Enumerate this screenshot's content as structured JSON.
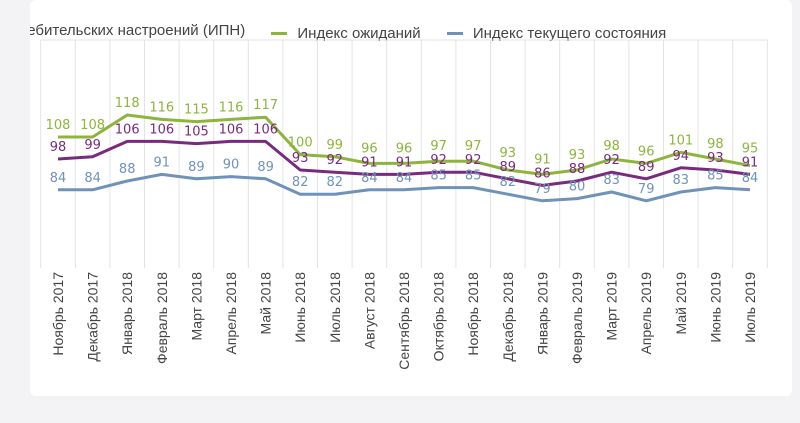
{
  "chart_data": {
    "type": "line",
    "title": "",
    "categories": [
      "Ноябрь 2017",
      "Декабрь 2017",
      "Январь 2018",
      "Февраль 2018",
      "Март 2018",
      "Апрель 2018",
      "Май 2018",
      "Июнь 2018",
      "Июль 2018",
      "Август 2018",
      "Сентябрь 2018",
      "Октябрь 2018",
      "Ноябрь 2018",
      "Декабрь 2018",
      "Январь 2019",
      "Февраль 2019",
      "Март 2019",
      "Апрель 2019",
      "Май 2019",
      "Июнь 2019",
      "Июль 2019"
    ],
    "series": [
      {
        "name": "Индекс потребительских настроений (ИПН)",
        "legend_visible": "отребительских настроений (ИПН)",
        "color": "#7a2a7e",
        "values": [
          98,
          99,
          106,
          106,
          105,
          106,
          106,
          93,
          92,
          91,
          91,
          92,
          92,
          89,
          86,
          88,
          92,
          89,
          94,
          93,
          91
        ]
      },
      {
        "name": "Индекс ожиданий",
        "color": "#8db53c",
        "values": [
          108,
          108,
          118,
          116,
          115,
          116,
          117,
          100,
          99,
          96,
          96,
          97,
          97,
          93,
          91,
          93,
          98,
          96,
          101,
          98,
          95
        ]
      },
      {
        "name": "Индекс текущего состояния",
        "color": "#6f93b8",
        "values": [
          84,
          84,
          88,
          91,
          89,
          90,
          89,
          82,
          82,
          84,
          84,
          85,
          85,
          82,
          79,
          80,
          83,
          79,
          83,
          85,
          84
        ]
      }
    ],
    "xlabel": "",
    "ylabel": "",
    "grid": "vertical",
    "legend": "top"
  }
}
